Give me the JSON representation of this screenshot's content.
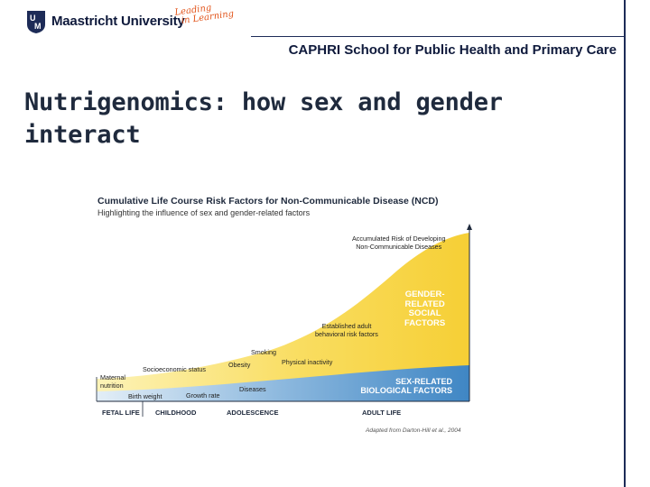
{
  "header": {
    "university": "Maastricht University",
    "tagline_line1": "Leading",
    "tagline_line2": "in Learning",
    "school": "CAPHRI School for Public Health and Primary Care"
  },
  "slide": {
    "title_line1": "Nutrigenomics: how sex and gender",
    "title_line2": "interact"
  },
  "diagram": {
    "title": "Cumulative Life Course Risk Factors for Non-Communicable Disease (NCD)",
    "subtitle": "Highlighting the influence of sex and gender-related factors",
    "top_label_line1": "Accumulated Risk of Developing",
    "top_label_line2": "Non-Communicable Diseases",
    "gender_factors": [
      "GENDER-",
      "RELATED",
      "SOCIAL",
      "FACTORS"
    ],
    "sex_factors_line1": "SEX-RELATED",
    "sex_factors_line2": "BIOLOGICAL FACTORS",
    "labels": {
      "maternal_line1": "Maternal",
      "maternal_line2": "nutrition",
      "birth_weight": "Birth weight",
      "socioeconomic": "Socioeconomic status",
      "growth_rate": "Growth rate",
      "obesity": "Obesity",
      "smoking": "Smoking",
      "diseases": "Diseases",
      "physical_inactivity": "Physical inactivity",
      "established_line1": "Established adult",
      "established_line2": "behavioral risk factors"
    },
    "stages": [
      "FETAL LIFE",
      "CHILDHOOD",
      "ADOLESCENCE",
      "ADULT LIFE"
    ],
    "credit": "Adapted from Darton-Hill et al., 2004",
    "colors": {
      "yellow": "#f8d648",
      "yellow_light": "#fdf3b8",
      "blue": "#3f86c4",
      "blue_light": "#b6d3ea",
      "navy": "#1d2b57",
      "orange": "#e2561d"
    }
  }
}
